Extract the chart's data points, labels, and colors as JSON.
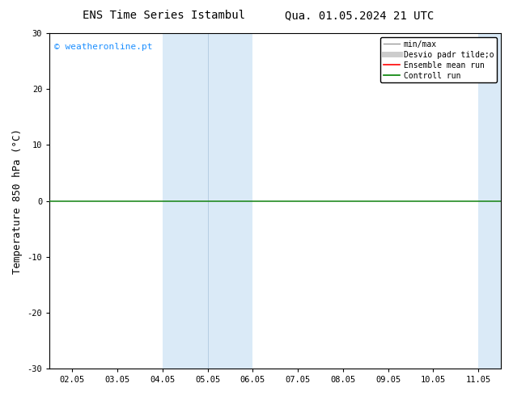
{
  "title_left": "ENS Time Series Istambul",
  "title_right": "Qua. 01.05.2024 21 UTC",
  "ylabel": "Temperature 850 hPa (°C)",
  "ylim": [
    -30,
    30
  ],
  "yticks": [
    -30,
    -20,
    -10,
    0,
    10,
    20,
    30
  ],
  "xtick_labels": [
    "02.05",
    "03.05",
    "04.05",
    "05.05",
    "06.05",
    "07.05",
    "08.05",
    "09.05",
    "10.05",
    "11.05"
  ],
  "xtick_positions": [
    0,
    1,
    2,
    3,
    4,
    5,
    6,
    7,
    8,
    9
  ],
  "x_min": -0.5,
  "x_max": 9.5,
  "hline_y": 0,
  "hline_color": "#228B22",
  "hline_linewidth": 1.2,
  "watermark_text": "© weatheronline.pt",
  "watermark_color": "#1E90FF",
  "legend_labels": [
    "min/max",
    "Desvio padr tilde;o",
    "Ensemble mean run",
    "Controll run"
  ],
  "legend_colors": [
    "#999999",
    "#cccccc",
    "red",
    "green"
  ],
  "legend_linewidths": [
    1.0,
    5.0,
    1.2,
    1.2
  ],
  "bg_color": "#ffffff",
  "plot_bg_color": "#ffffff",
  "shaded_color": "#daeaf7",
  "shaded_alpha": 1.0,
  "tick_fontsize": 7.5,
  "label_fontsize": 9,
  "title_fontsize": 10,
  "legend_fontsize": 7,
  "band1_start": 2.0,
  "band1_mid": 3.0,
  "band1_end": 4.0,
  "band2_start": 9.0,
  "band2_end": 9.5
}
